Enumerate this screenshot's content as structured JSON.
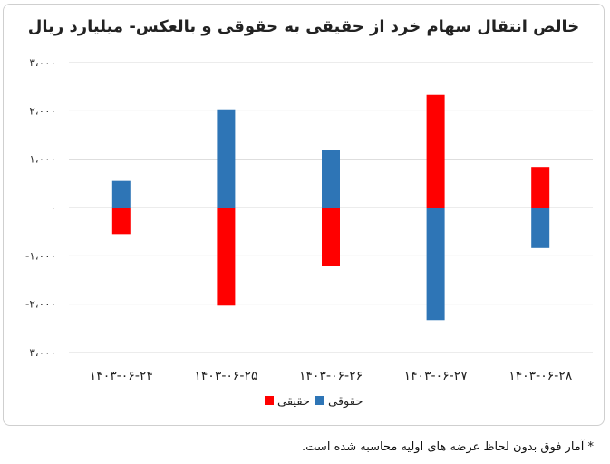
{
  "chart_data": {
    "type": "bar",
    "title": "خالص انتقال سهام خرد از حقیقی به حقوقی و بالعکس- میلیارد ریال",
    "categories": [
      "۱۴۰۳-۰۶-۲۴",
      "۱۴۰۳-۰۶-۲۵",
      "۱۴۰۳-۰۶-۲۶",
      "۱۴۰۳-۰۶-۲۷",
      "۱۴۰۳-۰۶-۲۸"
    ],
    "series": [
      {
        "name": "حقوقی",
        "color": "#2e75b6",
        "values": [
          550,
          2030,
          1200,
          -2330,
          -840
        ]
      },
      {
        "name": "حقیقی",
        "color": "#ff0000",
        "values": [
          -550,
          -2030,
          -1200,
          2330,
          840
        ]
      }
    ],
    "ylim": [
      -3000,
      3000
    ],
    "yticks": [
      3000,
      2000,
      1000,
      0,
      -1000,
      -2000,
      -3000
    ],
    "ytick_labels": [
      "۳،۰۰۰",
      "۲،۰۰۰",
      "۱،۰۰۰",
      "۰",
      "-۱،۰۰۰",
      "-۲،۰۰۰",
      "-۳،۰۰۰"
    ],
    "grid": true,
    "legend_position": "bottom-center",
    "xlabel": "",
    "ylabel": ""
  },
  "footnote": "* آمار فوق بدون لحاظ عرضه های اولیه محاسبه شده است."
}
